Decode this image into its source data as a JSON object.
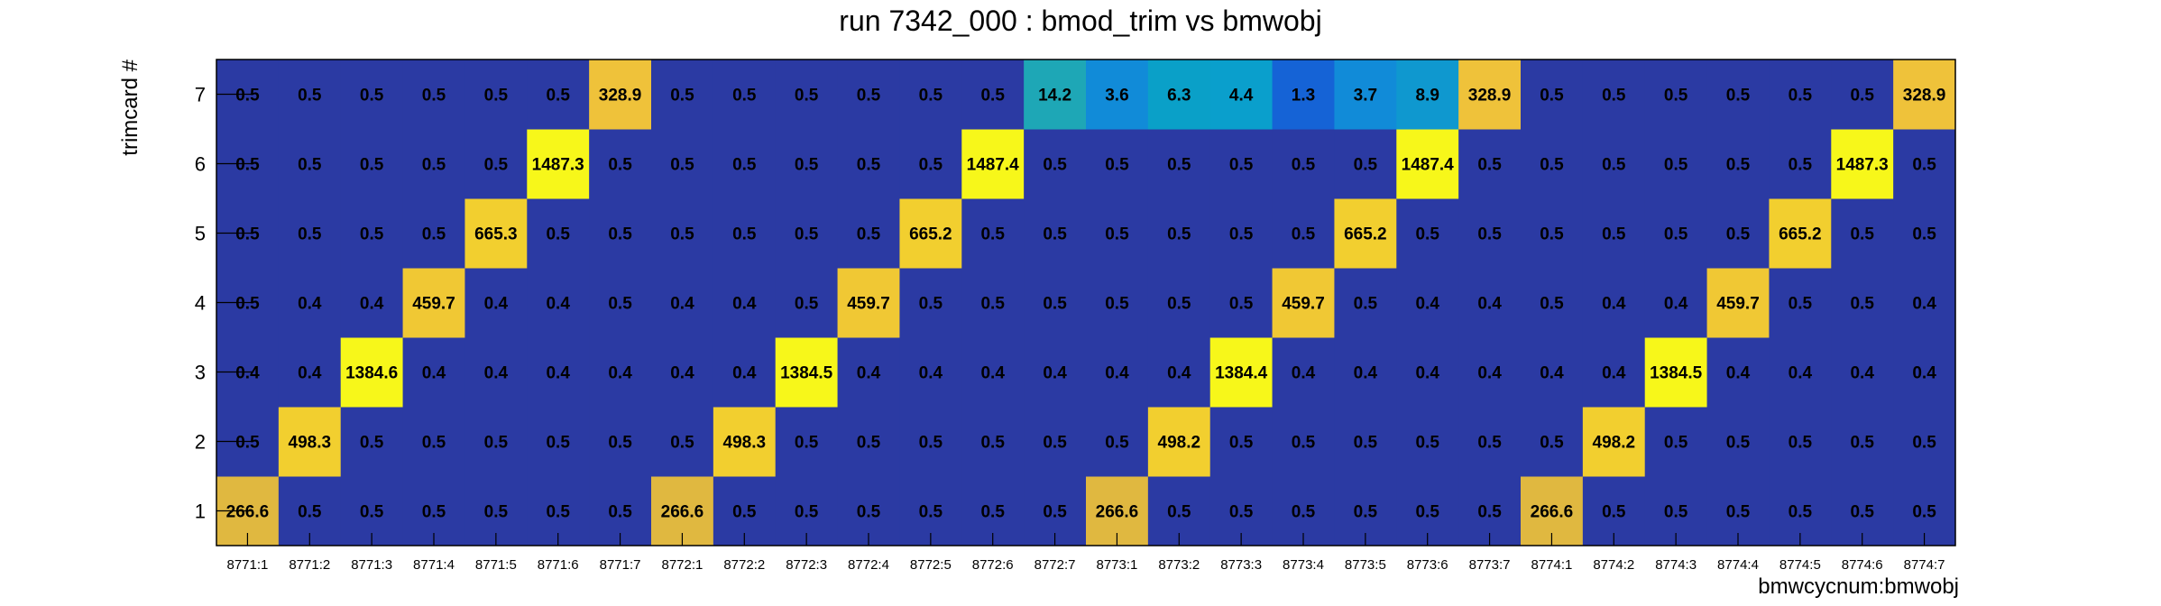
{
  "chart_data": {
    "type": "heatmap",
    "title": "run 7342_000 : bmod_trim vs bmwobj",
    "xlabel": "bmwcycnum:bmwobj",
    "ylabel": "trimcard #",
    "x_categories": [
      "8771:1",
      "8771:2",
      "8771:3",
      "8771:4",
      "8771:5",
      "8771:6",
      "8771:7",
      "8772:1",
      "8772:2",
      "8772:3",
      "8772:4",
      "8772:5",
      "8772:6",
      "8772:7",
      "8773:1",
      "8773:2",
      "8773:3",
      "8773:4",
      "8773:5",
      "8773:6",
      "8773:7",
      "8774:1",
      "8774:2",
      "8774:3",
      "8774:4",
      "8774:5",
      "8774:6",
      "8774:7"
    ],
    "y_categories": [
      "1",
      "2",
      "3",
      "4",
      "5",
      "6",
      "7"
    ],
    "values": [
      [
        "266.6",
        "0.5",
        "0.5",
        "0.5",
        "0.5",
        "0.5",
        "0.5",
        "266.6",
        "0.5",
        "0.5",
        "0.5",
        "0.5",
        "0.5",
        "0.5",
        "266.6",
        "0.5",
        "0.5",
        "0.5",
        "0.5",
        "0.5",
        "0.5",
        "266.6",
        "0.5",
        "0.5",
        "0.5",
        "0.5",
        "0.5",
        "0.5"
      ],
      [
        "0.5",
        "498.3",
        "0.5",
        "0.5",
        "0.5",
        "0.5",
        "0.5",
        "0.5",
        "498.3",
        "0.5",
        "0.5",
        "0.5",
        "0.5",
        "0.5",
        "0.5",
        "498.2",
        "0.5",
        "0.5",
        "0.5",
        "0.5",
        "0.5",
        "0.5",
        "498.2",
        "0.5",
        "0.5",
        "0.5",
        "0.5",
        "0.5"
      ],
      [
        "0.4",
        "0.4",
        "1384.6",
        "0.4",
        "0.4",
        "0.4",
        "0.4",
        "0.4",
        "0.4",
        "1384.5",
        "0.4",
        "0.4",
        "0.4",
        "0.4",
        "0.4",
        "0.4",
        "1384.4",
        "0.4",
        "0.4",
        "0.4",
        "0.4",
        "0.4",
        "0.4",
        "1384.5",
        "0.4",
        "0.4",
        "0.4",
        "0.4"
      ],
      [
        "0.5",
        "0.4",
        "0.4",
        "459.7",
        "0.4",
        "0.4",
        "0.5",
        "0.4",
        "0.4",
        "0.5",
        "459.7",
        "0.5",
        "0.5",
        "0.5",
        "0.5",
        "0.5",
        "0.5",
        "459.7",
        "0.5",
        "0.4",
        "0.4",
        "0.5",
        "0.4",
        "0.4",
        "459.7",
        "0.5",
        "0.5",
        "0.4"
      ],
      [
        "0.5",
        "0.5",
        "0.5",
        "0.5",
        "665.3",
        "0.5",
        "0.5",
        "0.5",
        "0.5",
        "0.5",
        "0.5",
        "665.2",
        "0.5",
        "0.5",
        "0.5",
        "0.5",
        "0.5",
        "0.5",
        "665.2",
        "0.5",
        "0.5",
        "0.5",
        "0.5",
        "0.5",
        "0.5",
        "665.2",
        "0.5",
        "0.5"
      ],
      [
        "0.5",
        "0.5",
        "0.5",
        "0.5",
        "0.5",
        "1487.3",
        "0.5",
        "0.5",
        "0.5",
        "0.5",
        "0.5",
        "0.5",
        "1487.4",
        "0.5",
        "0.5",
        "0.5",
        "0.5",
        "0.5",
        "0.5",
        "1487.4",
        "0.5",
        "0.5",
        "0.5",
        "0.5",
        "0.5",
        "0.5",
        "1487.3",
        "0.5"
      ],
      [
        "0.5",
        "0.5",
        "0.5",
        "0.5",
        "0.5",
        "0.5",
        "328.9",
        "0.5",
        "0.5",
        "0.5",
        "0.5",
        "0.5",
        "0.5",
        "14.2",
        "3.6",
        "6.3",
        "4.4",
        "1.3",
        "3.7",
        "8.9",
        "328.9",
        "0.5",
        "0.5",
        "0.5",
        "0.5",
        "0.5",
        "0.5",
        "328.9"
      ]
    ],
    "colors": {
      "low": "#2b3aa3",
      "mid_low": "#0f6fd6",
      "mid": "#0a93d0",
      "mid_high": "#17adbf",
      "cyan": "#1ea7b6",
      "orange": "#efc23a",
      "gold": "#e0b840",
      "yellow": "#f7f71a"
    },
    "grid": false
  }
}
